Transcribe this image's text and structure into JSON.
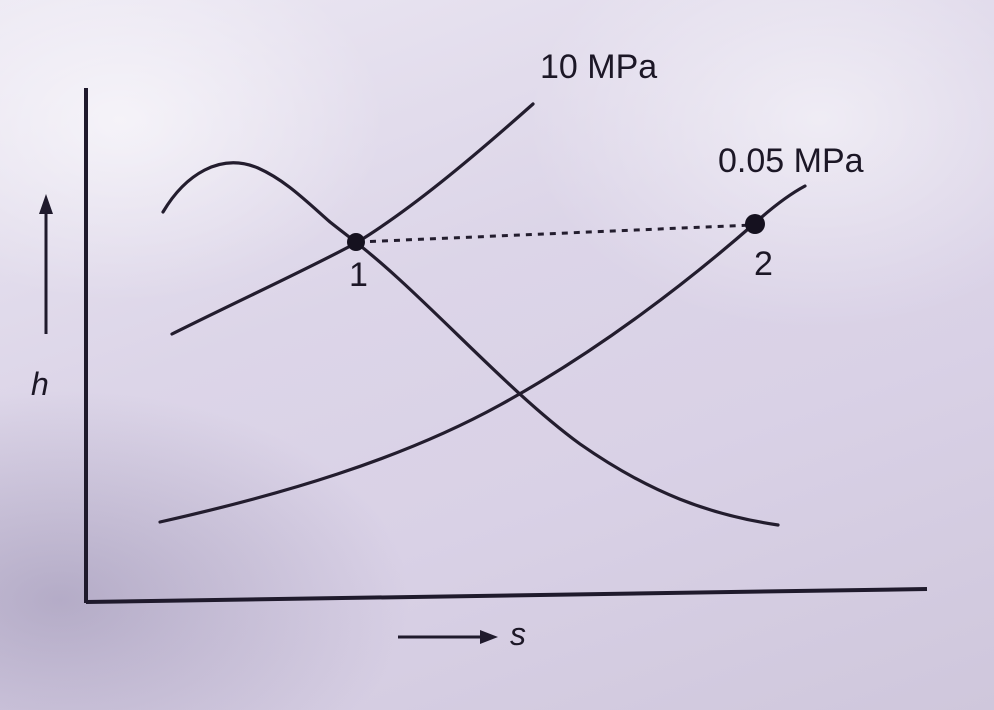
{
  "diagram": {
    "isobar_high": "10 MPa",
    "isobar_low": "0.05 MPa",
    "point_1": "1",
    "point_2": "2",
    "y_axis_label": "h",
    "x_axis_label": "s"
  }
}
